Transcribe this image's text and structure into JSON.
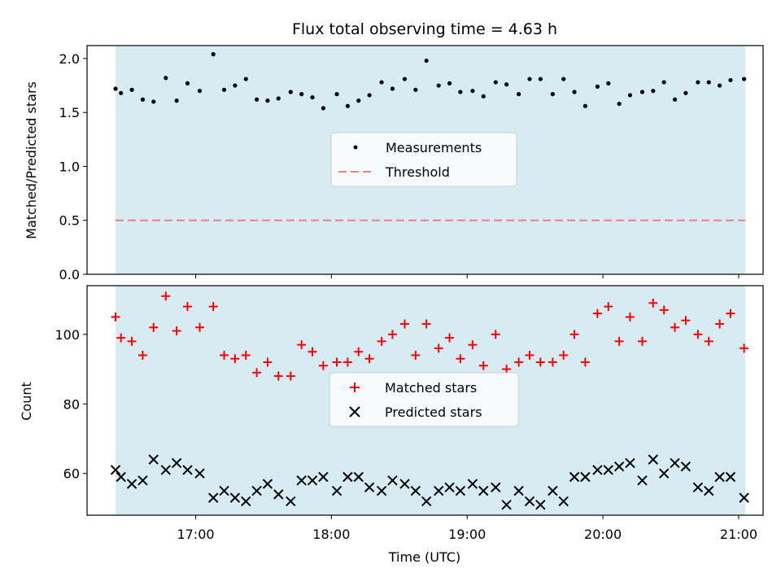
{
  "chart_data": {
    "type": "scatter",
    "title": "Flux total observing time = 4.63 h",
    "xlabel": "Time (UTC)",
    "x_ticks": [
      "17:00",
      "18:00",
      "19:00",
      "20:00",
      "21:00"
    ],
    "x_range_hours": [
      16.2,
      21.18
    ],
    "observing_window_hours": [
      16.41,
      21.05
    ],
    "colors": {
      "shading": "#add8e6",
      "measurement": "#000000",
      "threshold": "#f08080",
      "matched": "#ff0000",
      "predicted": "#000000"
    },
    "panels": [
      {
        "id": "ratio",
        "ylabel": "Matched/Predicted stars",
        "ylim": [
          0.0,
          2.12
        ],
        "y_ticks": [
          "0.0",
          "0.5",
          "1.0",
          "1.5",
          "2.0"
        ],
        "legend": {
          "measurements_label": "Measurements",
          "threshold_label": "Threshold",
          "placement": "center"
        },
        "threshold": 0.5,
        "x_hours": [
          16.41,
          16.45,
          16.53,
          16.61,
          16.69,
          16.78,
          16.86,
          16.94,
          17.03,
          17.13,
          17.21,
          17.29,
          17.37,
          17.45,
          17.53,
          17.61,
          17.7,
          17.78,
          17.86,
          17.94,
          18.04,
          18.12,
          18.2,
          18.28,
          18.37,
          18.45,
          18.54,
          18.62,
          18.7,
          18.79,
          18.87,
          18.95,
          19.04,
          19.12,
          19.21,
          19.29,
          19.38,
          19.46,
          19.54,
          19.63,
          19.71,
          19.79,
          19.87,
          19.96,
          20.04,
          20.12,
          20.2,
          20.29,
          20.37,
          20.45,
          20.53,
          20.61,
          20.7,
          20.78,
          20.86,
          20.94,
          21.04
        ],
        "values": [
          1.72,
          1.68,
          1.71,
          1.62,
          1.6,
          1.82,
          1.61,
          1.77,
          1.7,
          2.04,
          1.71,
          1.75,
          1.81,
          1.62,
          1.61,
          1.63,
          1.69,
          1.67,
          1.64,
          1.54,
          1.67,
          1.56,
          1.61,
          1.66,
          1.78,
          1.72,
          1.81,
          1.71,
          1.98,
          1.75,
          1.77,
          1.69,
          1.7,
          1.65,
          1.78,
          1.76,
          1.67,
          1.81,
          1.81,
          1.67,
          1.81,
          1.69,
          1.56,
          1.74,
          1.77,
          1.58,
          1.66,
          1.69,
          1.7,
          1.78,
          1.62,
          1.68,
          1.78,
          1.78,
          1.75,
          1.8,
          1.81
        ]
      },
      {
        "id": "counts",
        "ylabel": "Count",
        "ylim": [
          48,
          114
        ],
        "y_ticks": [
          "60",
          "80",
          "100"
        ],
        "legend": {
          "matched_label": "Matched stars",
          "predicted_label": "Predicted stars",
          "placement": "center"
        },
        "x_hours": [
          16.41,
          16.45,
          16.53,
          16.61,
          16.69,
          16.78,
          16.86,
          16.94,
          17.03,
          17.13,
          17.21,
          17.29,
          17.37,
          17.45,
          17.53,
          17.61,
          17.7,
          17.78,
          17.86,
          17.94,
          18.04,
          18.12,
          18.2,
          18.28,
          18.37,
          18.45,
          18.54,
          18.62,
          18.7,
          18.79,
          18.87,
          18.95,
          19.04,
          19.12,
          19.21,
          19.29,
          19.38,
          19.46,
          19.54,
          19.63,
          19.71,
          19.79,
          19.87,
          19.96,
          20.04,
          20.12,
          20.2,
          20.29,
          20.37,
          20.45,
          20.53,
          20.61,
          20.7,
          20.78,
          20.86,
          20.94,
          21.04
        ],
        "matched": [
          105,
          99,
          98,
          94,
          102,
          111,
          101,
          108,
          102,
          108,
          94,
          93,
          94,
          89,
          92,
          88,
          88,
          97,
          95,
          91,
          92,
          92,
          95,
          93,
          98,
          100,
          103,
          94,
          103,
          96,
          99,
          93,
          97,
          91,
          100,
          90,
          92,
          94,
          92,
          92,
          94,
          100,
          92,
          106,
          108,
          98,
          105,
          98,
          109,
          107,
          102,
          104,
          100,
          98,
          103,
          106,
          96
        ],
        "predicted": [
          61,
          59,
          57,
          58,
          64,
          61,
          63,
          61,
          60,
          53,
          55,
          53,
          52,
          55,
          57,
          54,
          52,
          58,
          58,
          59,
          55,
          59,
          59,
          56,
          55,
          58,
          57,
          55,
          52,
          55,
          56,
          55,
          57,
          55,
          56,
          51,
          55,
          52,
          51,
          55,
          52,
          59,
          59,
          61,
          61,
          62,
          63,
          58,
          64,
          60,
          63,
          62,
          56,
          55,
          59,
          59,
          53
        ]
      }
    ]
  }
}
